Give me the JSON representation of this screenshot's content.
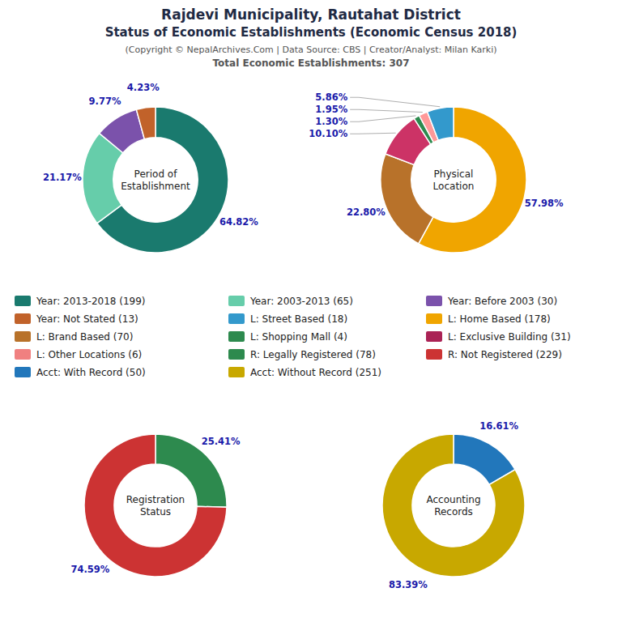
{
  "title": [
    "Rajdevi Municipality, Rautahat District",
    "Status of Economic Establishments (Economic Census 2018)"
  ],
  "subtitle": [
    "(Copyright © NepalArchives.Com | Data Source: CBS | Creator/Analyst: Milan Karki)",
    "Total Economic Establishments: 307"
  ],
  "chart_data": [
    {
      "type": "pie",
      "title": "Period of\nEstablishment",
      "values": [
        64.82,
        21.17,
        9.77,
        4.23
      ],
      "value_labels": [
        "64.82%",
        "21.17%",
        "9.77%",
        "4.23%"
      ],
      "colors": [
        "#1a7a6e",
        "#66cdaa",
        "#7b52ab",
        "#c1622a"
      ],
      "data_labels": true
    },
    {
      "type": "pie",
      "title": "Physical\nLocation",
      "values": [
        57.98,
        22.8,
        10.1,
        1.3,
        1.95,
        5.86
      ],
      "value_labels": [
        "57.98%",
        "22.80%",
        "10.10%",
        "1.30%",
        "1.95%",
        "5.86%"
      ],
      "colors": [
        "#f0a500",
        "#b8722a",
        "#cc3366",
        "#2d8a4e",
        "#ff9999",
        "#3399cc"
      ],
      "data_labels": true
    },
    {
      "type": "pie",
      "title": "Registration\nStatus",
      "values": [
        25.41,
        74.59
      ],
      "value_labels": [
        "25.41%",
        "74.59%"
      ],
      "colors": [
        "#2d8a4e",
        "#cc3333"
      ],
      "data_labels": true
    },
    {
      "type": "pie",
      "title": "Accounting\nRecords",
      "values": [
        16.61,
        83.39
      ],
      "value_labels": [
        "16.61%",
        "83.39%"
      ],
      "colors": [
        "#2277bb",
        "#c8a800"
      ],
      "data_labels": true
    },
    {
      "type": "legend",
      "series": [
        {
          "name": "Year: 2013-2018 (199)",
          "color": "#1a7a6e"
        },
        {
          "name": "Year: 2003-2013 (65)",
          "color": "#66cdaa"
        },
        {
          "name": "Year: Before 2003 (30)",
          "color": "#7b52ab"
        },
        {
          "name": "Year: Not Stated (13)",
          "color": "#c1622a"
        },
        {
          "name": "L: Street Based (18)",
          "color": "#3399cc"
        },
        {
          "name": "L: Home Based (178)",
          "color": "#f0a500"
        },
        {
          "name": "L: Brand Based (70)",
          "color": "#b8722a"
        },
        {
          "name": "L: Shopping Mall (4)",
          "color": "#2d8a4e"
        },
        {
          "name": "L: Exclusive Building (31)",
          "color": "#aa2255"
        },
        {
          "name": "L: Other Locations (6)",
          "color": "#f08080"
        },
        {
          "name": "R: Legally Registered (78)",
          "color": "#2d8a4e"
        },
        {
          "name": "R: Not Registered (229)",
          "color": "#cc3333"
        },
        {
          "name": "Acct: With Record (50)",
          "color": "#2277bb"
        },
        {
          "name": "Acct: Without Record (251)",
          "color": "#c8a800"
        }
      ]
    }
  ]
}
